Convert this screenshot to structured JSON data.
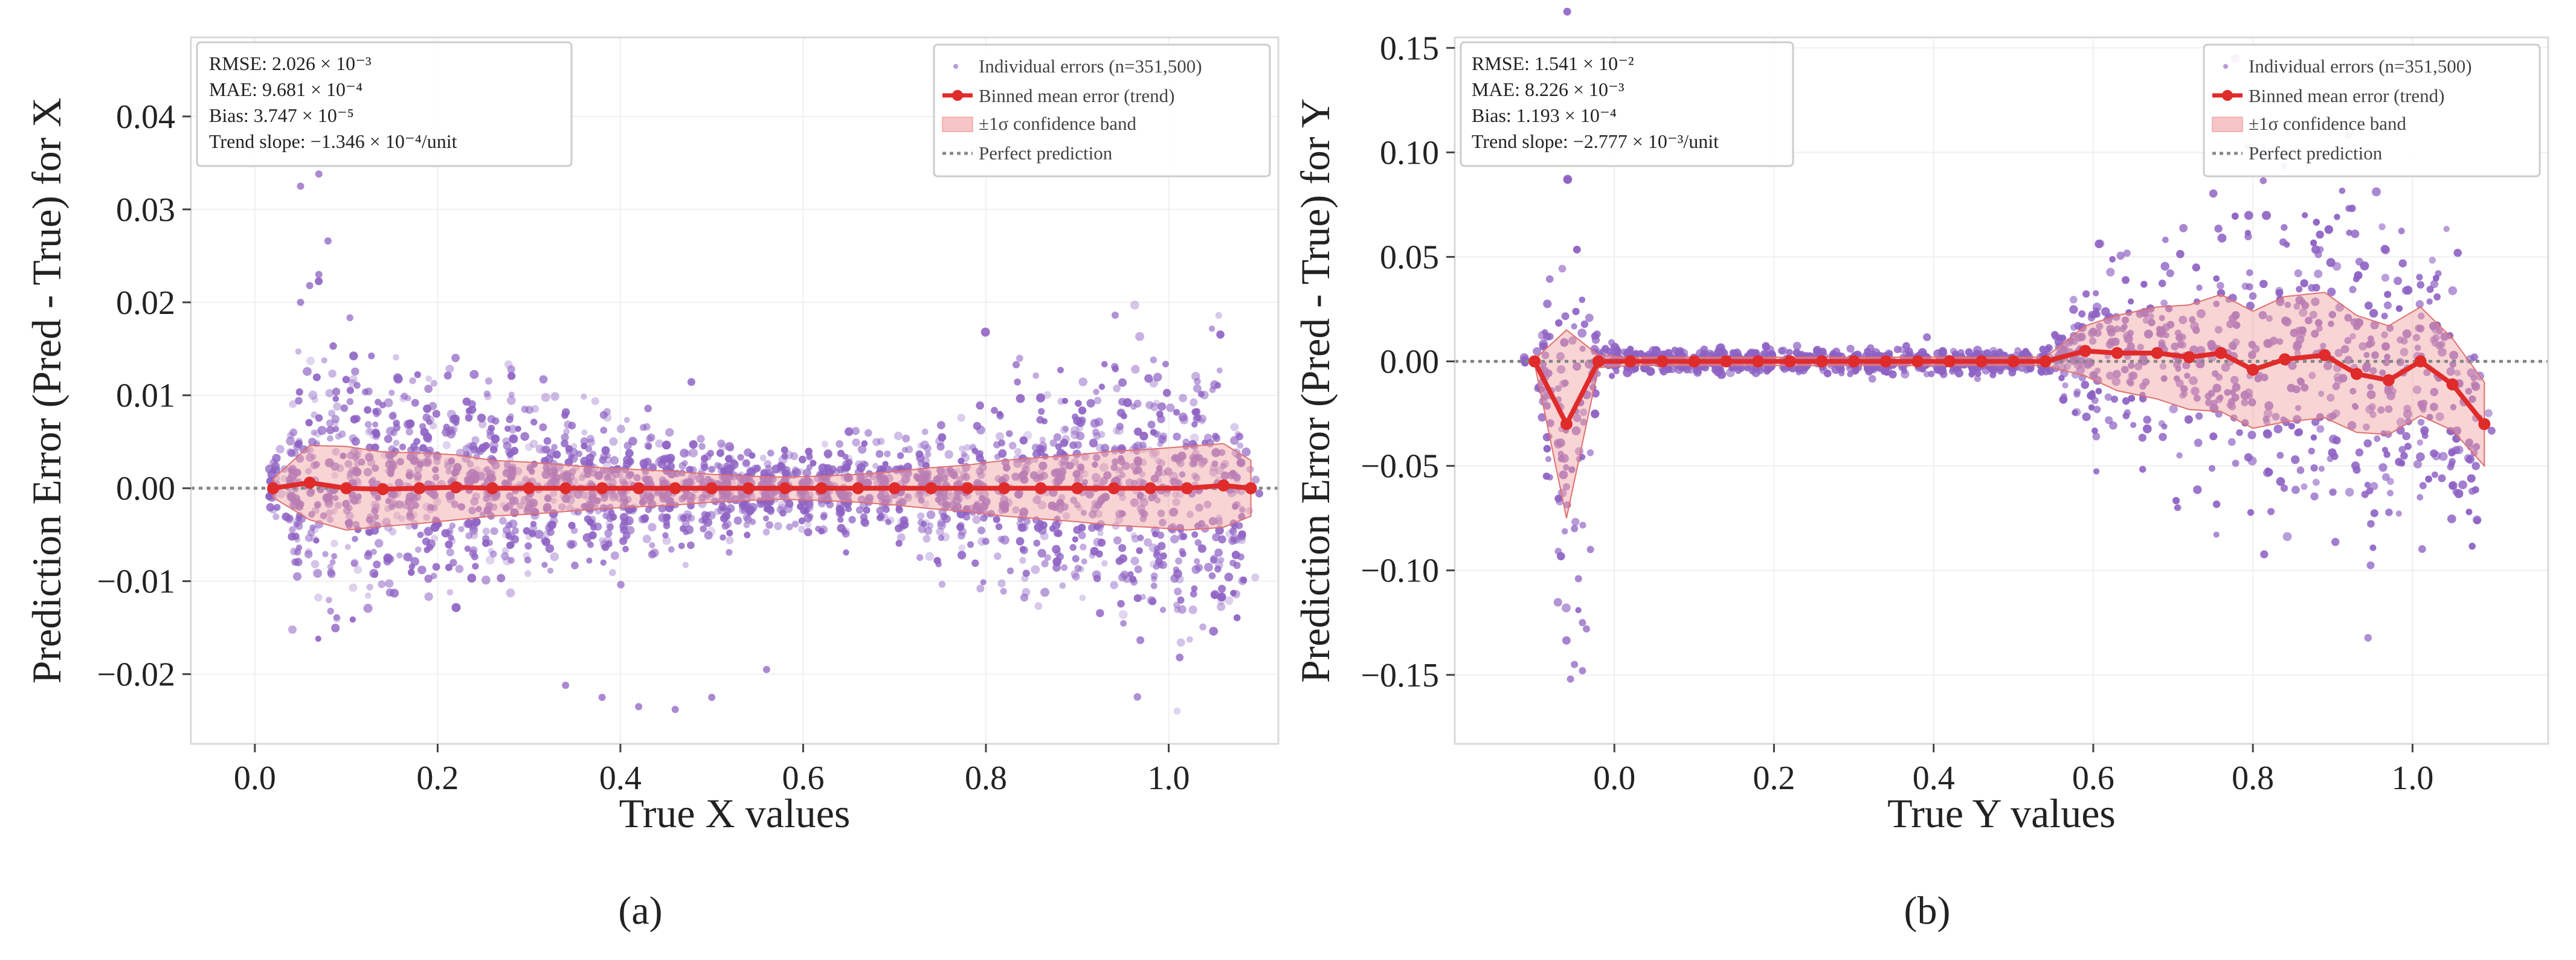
{
  "chart_data": [
    {
      "type": "scatter",
      "panel_label": "(a)",
      "xlabel": "True X values",
      "ylabel": "Prediction Error (Pred - True) for X",
      "xlim": [
        -0.07,
        1.12
      ],
      "ylim": [
        -0.0275,
        0.0485
      ],
      "xticks": [
        0.0,
        0.2,
        0.4,
        0.6,
        0.8,
        1.0
      ],
      "xtick_labels": [
        "0.0",
        "0.2",
        "0.4",
        "0.6",
        "0.8",
        "1.0"
      ],
      "yticks": [
        -0.02,
        -0.01,
        0.0,
        0.01,
        0.02,
        0.03,
        0.04
      ],
      "ytick_labels": [
        "−0.02",
        "−0.01",
        "0.00",
        "0.01",
        "0.02",
        "0.03",
        "0.04"
      ],
      "grid": true,
      "legend_position": "top-right",
      "stats": {
        "rmse": "RMSE: 2.026 × 10⁻³",
        "mae": "MAE: 9.681 × 10⁻⁴",
        "bias": "Bias: 3.747 × 10⁻⁵",
        "slope": "Trend slope: −1.346 × 10⁻⁴/unit"
      },
      "legend": {
        "scatter": "Individual errors (n=351,500)",
        "trend": "Binned mean error (trend)",
        "band": "±1σ confidence band",
        "perfect": "Perfect prediction"
      },
      "colors": {
        "scatter": "#8e62c4",
        "trend": "#e02b2b",
        "band": "#f0a0a0",
        "perfect": "#888888"
      },
      "trend": {
        "x": [
          0.02,
          0.06,
          0.1,
          0.14,
          0.18,
          0.22,
          0.26,
          0.3,
          0.34,
          0.38,
          0.42,
          0.46,
          0.5,
          0.54,
          0.58,
          0.62,
          0.66,
          0.7,
          0.74,
          0.78,
          0.82,
          0.86,
          0.9,
          0.94,
          0.98,
          1.02,
          1.06,
          1.09
        ],
        "mean": [
          0.0,
          0.0006,
          0.0,
          -0.0001,
          0.0,
          0.0001,
          0.0,
          0.0,
          0.0,
          0.0,
          0.0,
          0.0,
          0.0,
          0.0,
          0.0,
          0.0,
          0.0,
          0.0,
          0.0,
          0.0,
          0.0,
          0.0,
          0.0,
          0.0,
          0.0,
          0.0,
          0.0003,
          0.0
        ],
        "sigma": [
          0.001,
          0.004,
          0.0045,
          0.004,
          0.0038,
          0.0035,
          0.003,
          0.0028,
          0.0025,
          0.0022,
          0.002,
          0.0018,
          0.0015,
          0.0013,
          0.0012,
          0.0013,
          0.0015,
          0.0018,
          0.0022,
          0.0025,
          0.003,
          0.0033,
          0.0036,
          0.004,
          0.0042,
          0.0045,
          0.0045,
          0.003
        ]
      },
      "outliers": {
        "x": [
          0.05,
          0.06,
          0.07,
          0.08,
          0.05,
          0.07,
          0.38,
          0.42,
          0.46,
          0.5,
          0.56,
          0.34
        ],
        "y": [
          0.0325,
          0.0218,
          0.0338,
          0.0266,
          0.02,
          0.023,
          -0.0225,
          -0.0235,
          -0.0238,
          -0.0225,
          -0.0195,
          -0.0212
        ]
      }
    },
    {
      "type": "scatter",
      "panel_label": "(b)",
      "xlabel": "True Y values",
      "ylabel": "Prediction Error (Pred - True) for Y",
      "xlim": [
        -0.2,
        1.17
      ],
      "ylim": [
        -0.183,
        0.155
      ],
      "xticks": [
        0.0,
        0.2,
        0.4,
        0.6,
        0.8,
        1.0
      ],
      "xtick_labels": [
        "0.0",
        "0.2",
        "0.4",
        "0.6",
        "0.8",
        "1.0"
      ],
      "yticks": [
        -0.15,
        -0.1,
        -0.05,
        0.0,
        0.05,
        0.1,
        0.15
      ],
      "ytick_labels": [
        "−0.15",
        "−0.10",
        "−0.05",
        "0.00",
        "0.05",
        "0.10",
        "0.15"
      ],
      "grid": true,
      "legend_position": "top-right",
      "stats": {
        "rmse": "RMSE: 1.541 × 10⁻²",
        "mae": "MAE: 8.226 × 10⁻³",
        "bias": "Bias: 1.193 × 10⁻⁴",
        "slope": "Trend slope: −2.777 × 10⁻³/unit"
      },
      "legend": {
        "scatter": "Individual errors (n=351,500)",
        "trend": "Binned mean error (trend)",
        "band": "±1σ confidence band",
        "perfect": "Perfect prediction"
      },
      "colors": {
        "scatter": "#8e62c4",
        "trend": "#e02b2b",
        "band": "#f0a0a0",
        "perfect": "#888888"
      },
      "trend": {
        "x": [
          -0.1,
          -0.06,
          -0.02,
          0.02,
          0.06,
          0.1,
          0.14,
          0.18,
          0.22,
          0.26,
          0.3,
          0.34,
          0.38,
          0.42,
          0.46,
          0.5,
          0.54,
          0.59,
          0.63,
          0.68,
          0.72,
          0.76,
          0.8,
          0.84,
          0.89,
          0.93,
          0.97,
          1.01,
          1.05,
          1.09
        ],
        "mean": [
          0.0,
          -0.03,
          0.0,
          0.0,
          0.0,
          0.0,
          0.0,
          0.0,
          0.0,
          0.0,
          0.0,
          0.0,
          0.0,
          0.0,
          0.0,
          0.0,
          0.0,
          0.005,
          0.004,
          0.004,
          0.002,
          0.004,
          -0.004,
          0.001,
          0.003,
          -0.006,
          -0.009,
          0.0,
          -0.011,
          -0.03
        ],
        "sigma": [
          0.001,
          0.045,
          0.003,
          0.002,
          0.002,
          0.002,
          0.002,
          0.002,
          0.002,
          0.002,
          0.002,
          0.002,
          0.002,
          0.002,
          0.002,
          0.002,
          0.002,
          0.012,
          0.018,
          0.022,
          0.025,
          0.028,
          0.028,
          0.03,
          0.03,
          0.028,
          0.026,
          0.026,
          0.022,
          0.02
        ]
      },
      "outliers": {
        "x": [
          -0.06,
          -0.05,
          -0.045,
          -0.04,
          -0.035,
          -0.05,
          -0.055,
          -0.03,
          -0.04
        ],
        "y": [
          -0.06,
          -0.08,
          -0.104,
          -0.125,
          -0.128,
          -0.145,
          -0.152,
          -0.09,
          -0.148
        ]
      }
    }
  ]
}
